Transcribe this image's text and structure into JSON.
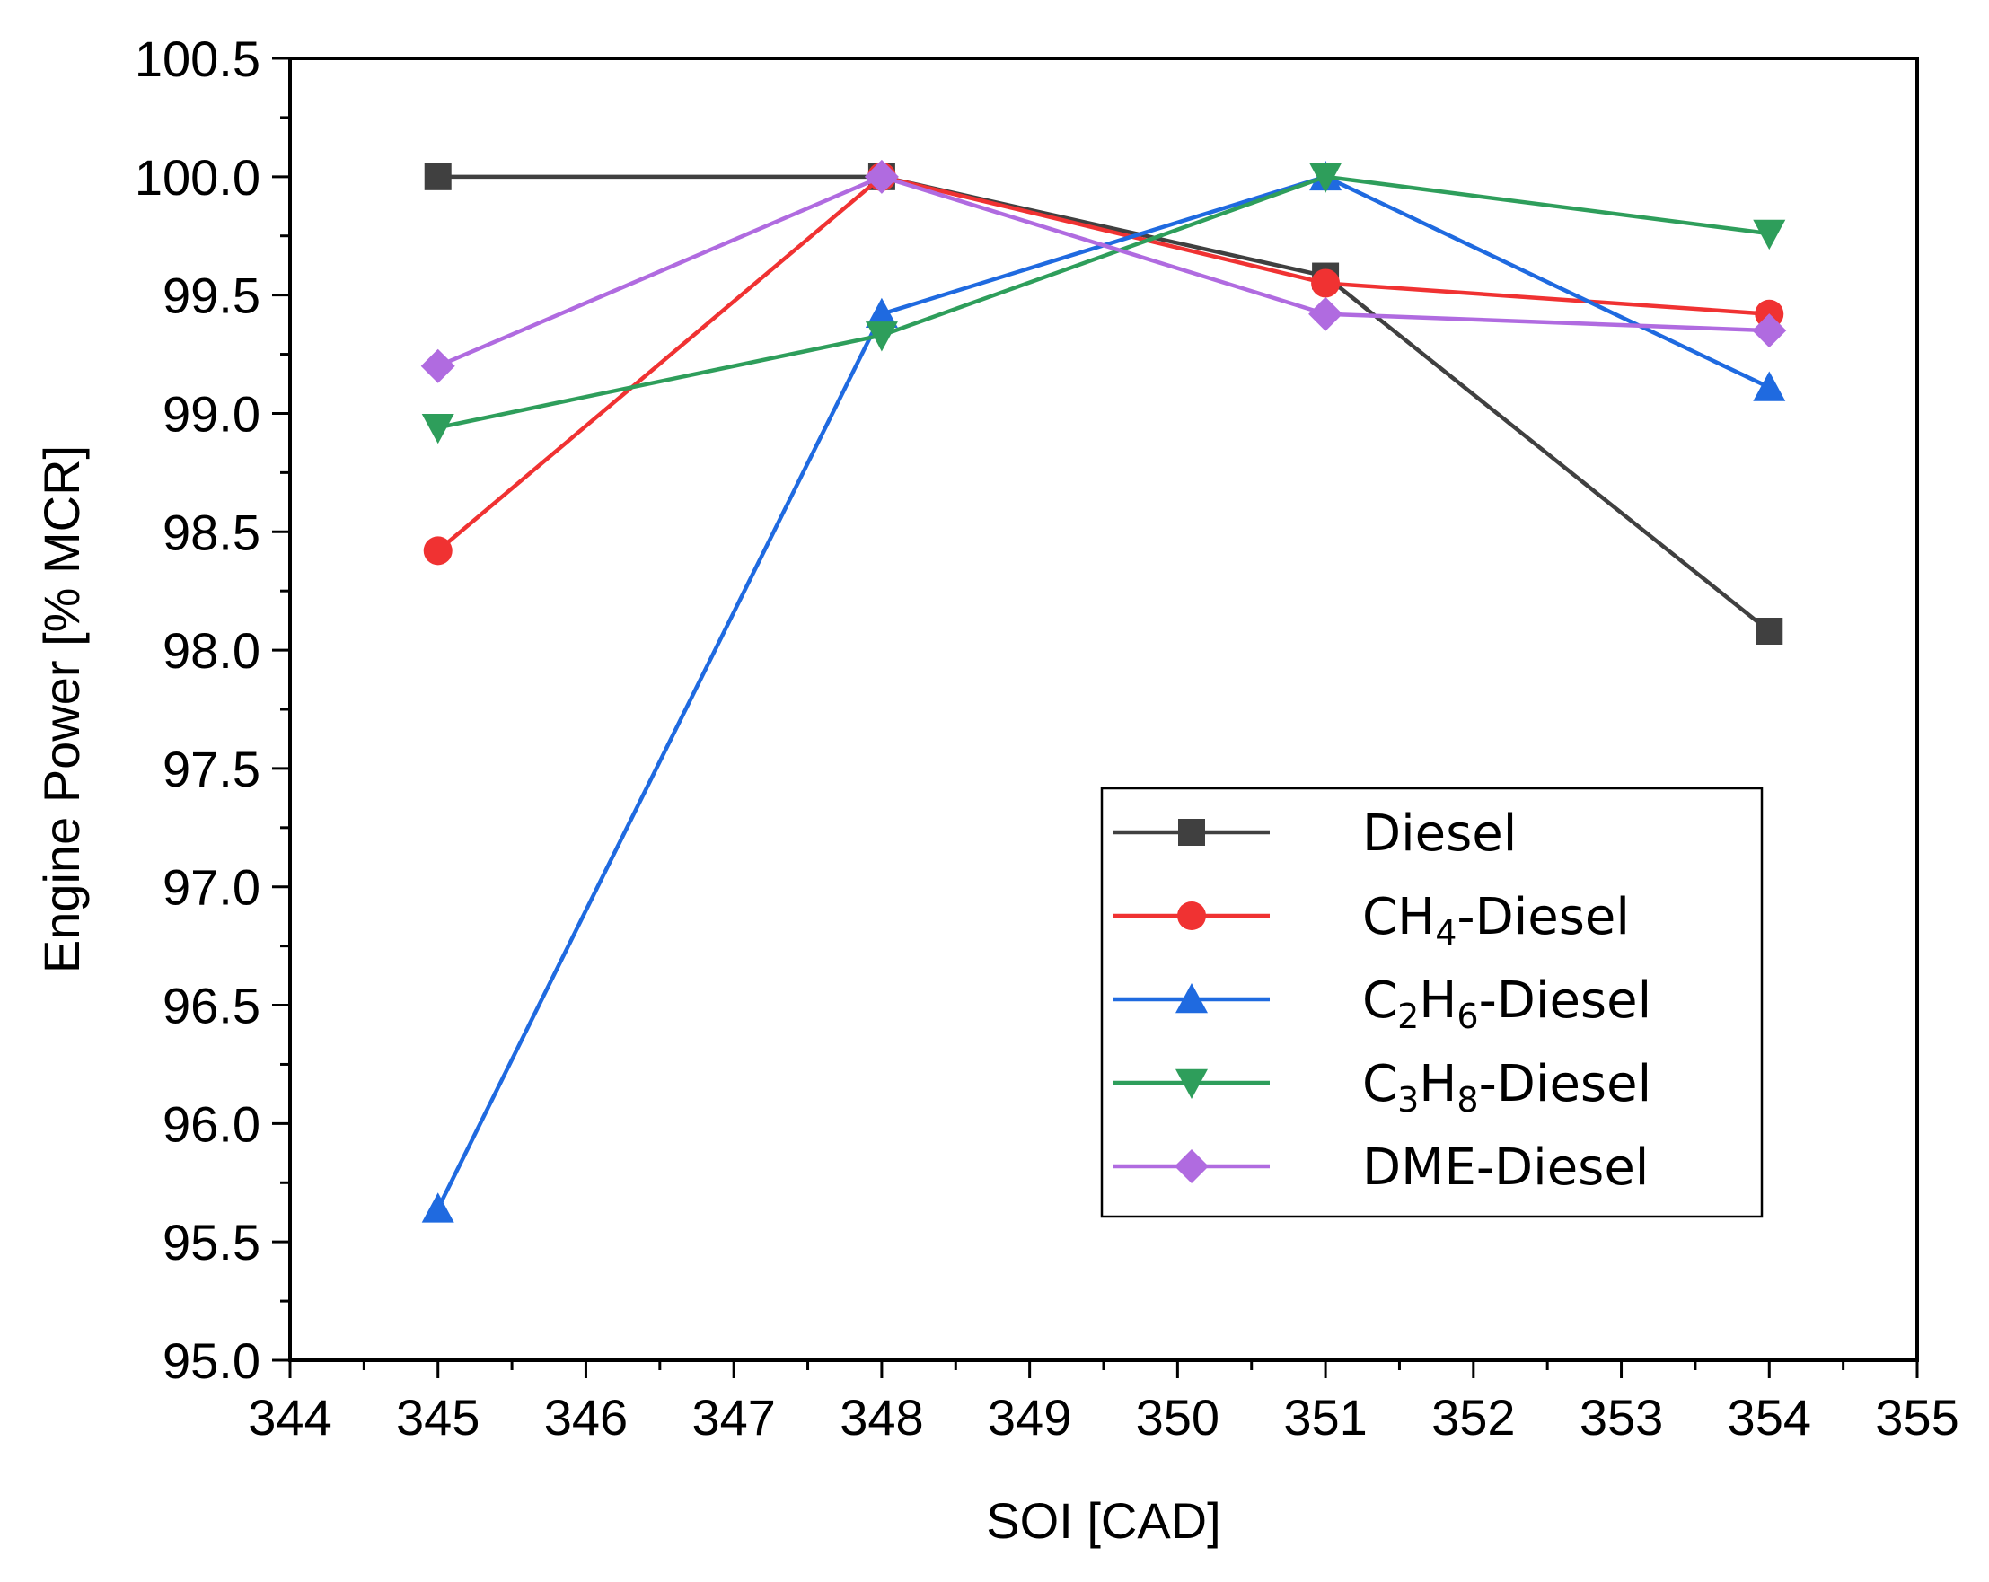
{
  "chart_data": {
    "type": "line",
    "title": "",
    "xlabel": "SOI [CAD]",
    "ylabel": "Engine Power [% MCR]",
    "xlim": [
      344,
      355
    ],
    "ylim": [
      95.0,
      100.5
    ],
    "x_ticks": [
      "344",
      "345",
      "346",
      "347",
      "348",
      "349",
      "350",
      "351",
      "352",
      "353",
      "354",
      "355"
    ],
    "y_ticks": [
      "95.0",
      "95.5",
      "96.0",
      "96.5",
      "97.0",
      "97.5",
      "98.0",
      "98.5",
      "99.0",
      "99.5",
      "100.0",
      "100.5"
    ],
    "grid": false,
    "legend_position": "lower-right",
    "x": [
      345,
      348,
      351,
      354
    ],
    "series": [
      {
        "name": "Diesel",
        "legend": {
          "base": "Diesel"
        },
        "color": "#404040",
        "marker": "square",
        "values": [
          100.0,
          100.0,
          99.58,
          98.08
        ]
      },
      {
        "name": "CH4-Diesel",
        "legend": {
          "base": "CH",
          "sub1": "4",
          "mid": "",
          "sub2": "",
          "rest": "-Diesel"
        },
        "color": "#f03232",
        "marker": "circle",
        "values": [
          98.42,
          100.0,
          99.55,
          99.42
        ]
      },
      {
        "name": "C2H6-Diesel",
        "legend": {
          "base": "C",
          "sub1": "2",
          "mid": "H",
          "sub2": "6",
          "rest": "-Diesel"
        },
        "color": "#1f6ae0",
        "marker": "triangle-up",
        "values": [
          95.64,
          99.42,
          100.0,
          99.11
        ]
      },
      {
        "name": "C3H8-Diesel",
        "legend": {
          "base": "C",
          "sub1": "3",
          "mid": "H",
          "sub2": "8",
          "rest": "-Diesel"
        },
        "color": "#2e9e5b",
        "marker": "triangle-down",
        "values": [
          98.94,
          99.33,
          100.0,
          99.76
        ]
      },
      {
        "name": "DME-Diesel",
        "legend": {
          "base": "DME-Diesel"
        },
        "color": "#b06be0",
        "marker": "diamond",
        "values": [
          99.2,
          100.0,
          99.42,
          99.35
        ]
      }
    ]
  }
}
